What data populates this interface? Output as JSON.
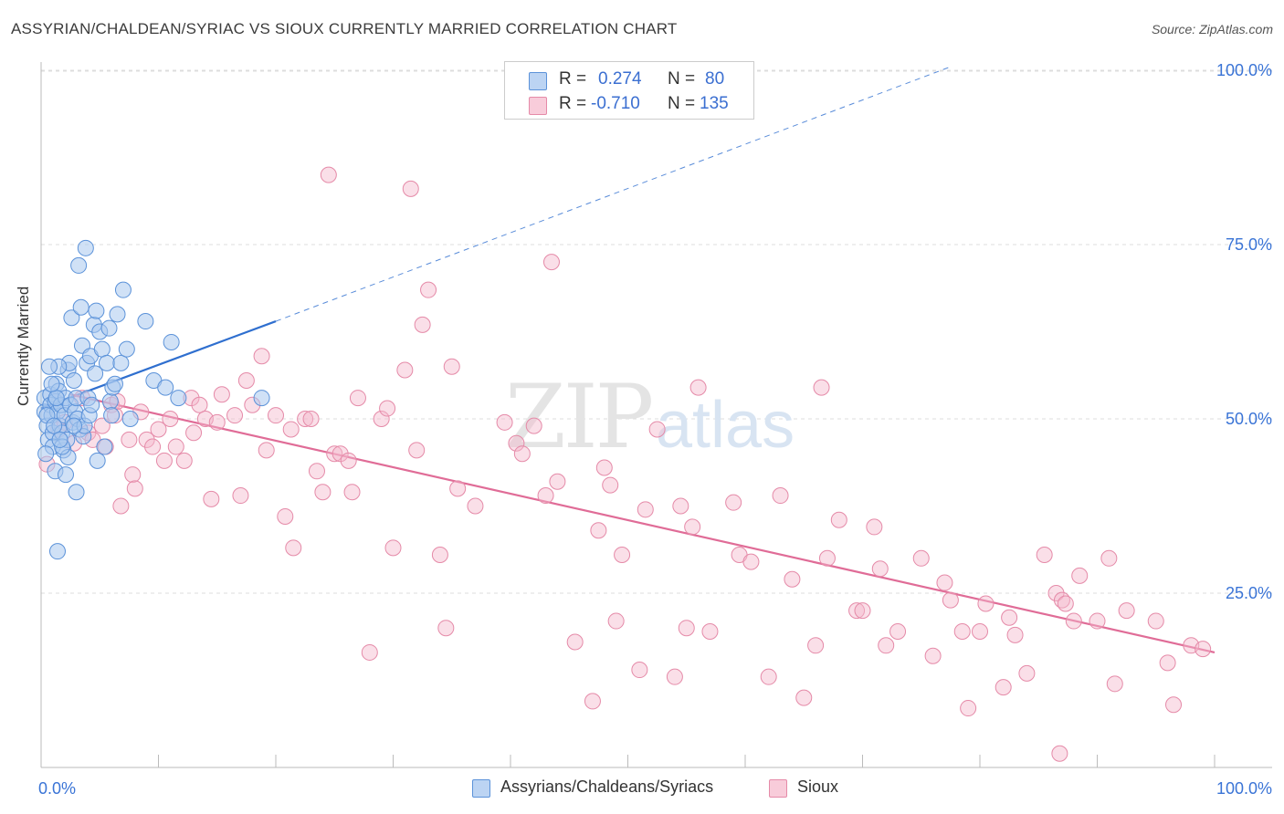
{
  "title": "ASSYRIAN/CHALDEAN/SYRIAC VS SIOUX CURRENTLY MARRIED CORRELATION CHART",
  "source": "Source: ZipAtlas.com",
  "watermark": {
    "zip": "ZIP",
    "atlas": "atlas"
  },
  "legend": {
    "rows": [
      {
        "r_label": "R =",
        "r_value": "0.274",
        "n_label": "N =",
        "n_value": "80"
      },
      {
        "r_label": "R =",
        "r_value": "-0.710",
        "n_label": "N =",
        "n_value": "135"
      }
    ]
  },
  "bottom_legend": {
    "series_a": "Assyrians/Chaldeans/Syriacs",
    "series_b": "Sioux"
  },
  "colors": {
    "blue_fill": "#a9c8ef",
    "blue_stroke": "#5b92d9",
    "blue_line": "#2f6fcf",
    "pink_fill": "#f5b9cc",
    "pink_stroke": "#e58aa8",
    "pink_line": "#e06c97",
    "tick_text": "#3a74d6",
    "grid": "#dddddd"
  },
  "chart_data": {
    "type": "scatter",
    "title": "ASSYRIAN/CHALDEAN/SYRIAC VS SIOUX CURRENTLY MARRIED CORRELATION CHART",
    "xlabel": "",
    "ylabel": "Currently Married",
    "xlim": [
      0,
      100
    ],
    "ylim": [
      0,
      102
    ],
    "x_tick_labels": [
      "0.0%",
      "100.0%"
    ],
    "y_ticks": [
      25,
      50,
      75,
      100
    ],
    "y_tick_labels": [
      "25.0%",
      "50.0%",
      "75.0%",
      "100.0%"
    ],
    "grid": true,
    "series": [
      {
        "name": "Assyrians/Chaldeans/Syriacs",
        "R": 0.274,
        "N": 80,
        "trend": {
          "x0": 0,
          "y0": 51.5,
          "x1": 20,
          "y1": 64.0,
          "dashed_to_x": 77.5,
          "dashed_to_y": 100.5
        },
        "points": [
          [
            0.3,
            53
          ],
          [
            0.3,
            51
          ],
          [
            0.5,
            49
          ],
          [
            0.6,
            47
          ],
          [
            0.8,
            53.5
          ],
          [
            0.8,
            52
          ],
          [
            0.9,
            50.5
          ],
          [
            1,
            48
          ],
          [
            1,
            46
          ],
          [
            1.2,
            42.5
          ],
          [
            1.2,
            52.5
          ],
          [
            1.3,
            55
          ],
          [
            1.4,
            51
          ],
          [
            1.5,
            54
          ],
          [
            1.6,
            49
          ],
          [
            1.7,
            52
          ],
          [
            1.8,
            48
          ],
          [
            1.9,
            45.5
          ],
          [
            2,
            50.5
          ],
          [
            2.1,
            53
          ],
          [
            2.2,
            47
          ],
          [
            2.3,
            44.5
          ],
          [
            2.3,
            57
          ],
          [
            2.4,
            58
          ],
          [
            2.5,
            52
          ],
          [
            2.6,
            64.5
          ],
          [
            2.7,
            49.5
          ],
          [
            2.8,
            55.5
          ],
          [
            2.9,
            51
          ],
          [
            3,
            39.5
          ],
          [
            3,
            53
          ],
          [
            3.1,
            50
          ],
          [
            3.2,
            72
          ],
          [
            3.3,
            48.5
          ],
          [
            3.4,
            66
          ],
          [
            3.5,
            60.5
          ],
          [
            3.6,
            47.5
          ],
          [
            3.7,
            49
          ],
          [
            3.8,
            74.5
          ],
          [
            3.9,
            58
          ],
          [
            4,
            53
          ],
          [
            4.1,
            50.5
          ],
          [
            4.2,
            59
          ],
          [
            4.5,
            63.5
          ],
          [
            4.6,
            56.5
          ],
          [
            4.7,
            65.5
          ],
          [
            4.8,
            44
          ],
          [
            5,
            62.5
          ],
          [
            5.2,
            60
          ],
          [
            5.4,
            46
          ],
          [
            5.6,
            58
          ],
          [
            5.8,
            63
          ],
          [
            5.9,
            52.5
          ],
          [
            6,
            50.5
          ],
          [
            6.1,
            54.5
          ],
          [
            6.3,
            55
          ],
          [
            6.5,
            65
          ],
          [
            6.8,
            58
          ],
          [
            7,
            68.5
          ],
          [
            7.3,
            60
          ],
          [
            7.6,
            50
          ],
          [
            8.9,
            64
          ],
          [
            9.6,
            55.5
          ],
          [
            10.6,
            54.5
          ],
          [
            11.1,
            61
          ],
          [
            11.7,
            53
          ],
          [
            18.8,
            53
          ],
          [
            0.4,
            45
          ],
          [
            0.5,
            50.5
          ],
          [
            1.1,
            49
          ],
          [
            1.5,
            57.5
          ],
          [
            1.8,
            46
          ],
          [
            2.1,
            42
          ],
          [
            2.8,
            49
          ],
          [
            0.7,
            57.5
          ],
          [
            1.3,
            53
          ],
          [
            1.6,
            47
          ],
          [
            0.9,
            55
          ],
          [
            4.3,
            52
          ],
          [
            1.4,
            31
          ]
        ]
      },
      {
        "name": "Sioux",
        "R": -0.71,
        "N": 135,
        "trend": {
          "x0": 2.5,
          "y0": 53.5,
          "x1": 100,
          "y1": 16.5
        },
        "points": [
          [
            0.5,
            43.5
          ],
          [
            1.5,
            48.5
          ],
          [
            2,
            49.5
          ],
          [
            2.8,
            46.5
          ],
          [
            3.5,
            53
          ],
          [
            4,
            48
          ],
          [
            4.4,
            47
          ],
          [
            5.2,
            49
          ],
          [
            5.5,
            46
          ],
          [
            6,
            52
          ],
          [
            6.3,
            50.5
          ],
          [
            6.5,
            52.5
          ],
          [
            6.8,
            37.5
          ],
          [
            7.5,
            47
          ],
          [
            7.8,
            42
          ],
          [
            8,
            40
          ],
          [
            8.5,
            51
          ],
          [
            9,
            47
          ],
          [
            9.5,
            46
          ],
          [
            10,
            48.5
          ],
          [
            10.5,
            44
          ],
          [
            11,
            50
          ],
          [
            11.5,
            46
          ],
          [
            12.2,
            44
          ],
          [
            12.8,
            53
          ],
          [
            13,
            48
          ],
          [
            13.5,
            52
          ],
          [
            14,
            50
          ],
          [
            14.5,
            38.5
          ],
          [
            15,
            49.5
          ],
          [
            15.4,
            53.5
          ],
          [
            16.5,
            50.5
          ],
          [
            17,
            39
          ],
          [
            17.5,
            55.5
          ],
          [
            18,
            52
          ],
          [
            18.8,
            59
          ],
          [
            19.2,
            45.5
          ],
          [
            20,
            50.5
          ],
          [
            20.8,
            36
          ],
          [
            21.3,
            48.5
          ],
          [
            21.5,
            31.5
          ],
          [
            22.5,
            50
          ],
          [
            23,
            50
          ],
          [
            23.5,
            42.5
          ],
          [
            24,
            39.5
          ],
          [
            24.5,
            85
          ],
          [
            25,
            45
          ],
          [
            25.5,
            45
          ],
          [
            26.2,
            44
          ],
          [
            26.5,
            39.5
          ],
          [
            27,
            53
          ],
          [
            28,
            16.5
          ],
          [
            29,
            50
          ],
          [
            29.5,
            51.5
          ],
          [
            30,
            31.5
          ],
          [
            31,
            57
          ],
          [
            31.5,
            83
          ],
          [
            32,
            45.5
          ],
          [
            32.5,
            63.5
          ],
          [
            33,
            68.5
          ],
          [
            34,
            30.5
          ],
          [
            34.5,
            20
          ],
          [
            35,
            57.5
          ],
          [
            35.5,
            40
          ],
          [
            37,
            37.5
          ],
          [
            39.5,
            49.5
          ],
          [
            40.5,
            46.5
          ],
          [
            41,
            45
          ],
          [
            42,
            49
          ],
          [
            43,
            39
          ],
          [
            43.5,
            72.5
          ],
          [
            44,
            41
          ],
          [
            45.5,
            18
          ],
          [
            47,
            9.5
          ],
          [
            47.5,
            34
          ],
          [
            48,
            43
          ],
          [
            48.5,
            40.5
          ],
          [
            49,
            21
          ],
          [
            49.5,
            30.5
          ],
          [
            51,
            14
          ],
          [
            51.5,
            37
          ],
          [
            52.5,
            48.5
          ],
          [
            54,
            13
          ],
          [
            54.5,
            37.5
          ],
          [
            55,
            20
          ],
          [
            55.5,
            34.5
          ],
          [
            56,
            54.5
          ],
          [
            57,
            19.5
          ],
          [
            59,
            38
          ],
          [
            59.5,
            30.5
          ],
          [
            60.5,
            29.5
          ],
          [
            62,
            13
          ],
          [
            63,
            39
          ],
          [
            64,
            27
          ],
          [
            65,
            10
          ],
          [
            66,
            17.5
          ],
          [
            66.5,
            54.5
          ],
          [
            67,
            30
          ],
          [
            68,
            35.5
          ],
          [
            69.5,
            22.5
          ],
          [
            70,
            22.5
          ],
          [
            71,
            34.5
          ],
          [
            71.5,
            28.5
          ],
          [
            72,
            17.5
          ],
          [
            73,
            19.5
          ],
          [
            75,
            30
          ],
          [
            76,
            16
          ],
          [
            77,
            26.5
          ],
          [
            77.5,
            24
          ],
          [
            78.5,
            19.5
          ],
          [
            79,
            8.5
          ],
          [
            80,
            19.5
          ],
          [
            80.5,
            23.5
          ],
          [
            82,
            11.5
          ],
          [
            82.5,
            21.5
          ],
          [
            83,
            19
          ],
          [
            84,
            13.5
          ],
          [
            85.5,
            30.5
          ],
          [
            86.5,
            25
          ],
          [
            86.8,
            2
          ],
          [
            87,
            24
          ],
          [
            87.3,
            23.5
          ],
          [
            88,
            21
          ],
          [
            88.5,
            27.5
          ],
          [
            90,
            21
          ],
          [
            91,
            30
          ],
          [
            91.5,
            12
          ],
          [
            95,
            21
          ],
          [
            96,
            15
          ],
          [
            96.5,
            9
          ],
          [
            98,
            17.5
          ],
          [
            99,
            17
          ],
          [
            92.5,
            22.5
          ]
        ]
      }
    ]
  }
}
